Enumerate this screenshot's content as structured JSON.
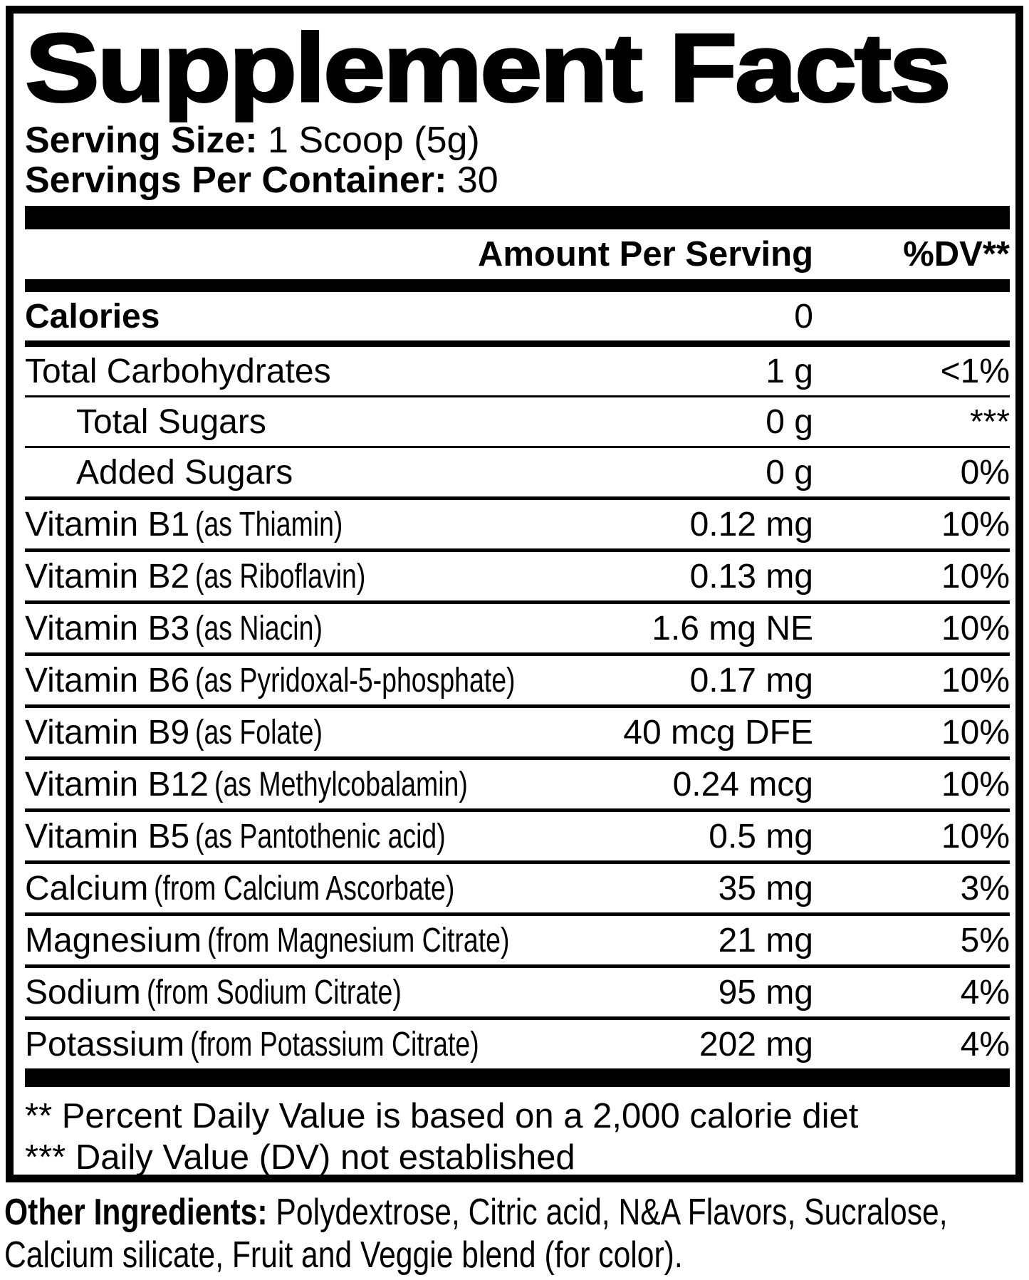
{
  "title": "Supplement Facts",
  "serving_size": {
    "label": "Serving Size:",
    "value": " 1 Scoop (5g)"
  },
  "servings_per_container": {
    "label": "Servings Per Container:",
    "value": " 30"
  },
  "columns": {
    "amount": "Amount Per Serving",
    "dv": "%DV**"
  },
  "rows": [
    {
      "name": "Calories",
      "detail": "",
      "amount": "0",
      "dv": ""
    },
    {
      "name": "Total Carbohydrates",
      "detail": "",
      "amount": "1 g",
      "dv": "<1%"
    },
    {
      "name": "Total Sugars",
      "detail": "",
      "amount": "0 g",
      "dv": "***"
    },
    {
      "name": "Added Sugars",
      "detail": "",
      "amount": "0 g",
      "dv": "0%"
    },
    {
      "name": "Vitamin B1",
      "detail": "(as Thiamin)",
      "amount": "0.12 mg",
      "dv": "10%"
    },
    {
      "name": "Vitamin B2",
      "detail": "(as Riboflavin)",
      "amount": "0.13 mg",
      "dv": "10%"
    },
    {
      "name": "Vitamin B3",
      "detail": "(as Niacin)",
      "amount": "1.6 mg NE",
      "dv": "10%"
    },
    {
      "name": "Vitamin B6",
      "detail": "(as Pyridoxal-5-phosphate)",
      "amount": "0.17 mg",
      "dv": "10%"
    },
    {
      "name": "Vitamin B9",
      "detail": "(as Folate)",
      "amount": "40 mcg DFE",
      "dv": "10%"
    },
    {
      "name": "Vitamin B12",
      "detail": "(as Methylcobalamin)",
      "amount": "0.24 mcg",
      "dv": "10%"
    },
    {
      "name": "Vitamin B5",
      "detail": "(as Pantothenic acid)",
      "amount": "0.5 mg",
      "dv": "10%"
    },
    {
      "name": "Calcium",
      "detail": "(from Calcium Ascorbate)",
      "amount": "35 mg",
      "dv": "3%"
    },
    {
      "name": "Magnesium",
      "detail": "(from Magnesium Citrate)",
      "amount": "21 mg",
      "dv": "5%"
    },
    {
      "name": "Sodium",
      "detail": "(from Sodium Citrate)",
      "amount": "95 mg",
      "dv": "4%"
    },
    {
      "name": "Potassium",
      "detail": "(from Potassium Citrate)",
      "amount": "202 mg",
      "dv": "4%"
    }
  ],
  "footnotes": {
    "dv_basis": "** Percent Daily Value is based on a 2,000 calorie diet",
    "dv_not_established": "*** Daily Value (DV) not established"
  },
  "other_ingredients": {
    "label": "Other Ingredients:",
    "text": " Polydextrose, Citric acid, N&A Flavors, Sucralose, Calcium silicate, Fruit and Veggie blend (for color)."
  },
  "colors": {
    "ink": "#000000",
    "background": "#ffffff"
  }
}
